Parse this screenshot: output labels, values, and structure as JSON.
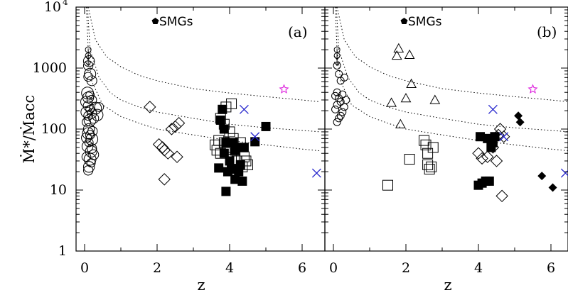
{
  "chart_data": {
    "type": "scatter",
    "xlabel": "z",
    "ylabel": "Ṁ*/Ṁacc",
    "xlim": [
      -0.3,
      6.5
    ],
    "ylim": [
      1,
      10000
    ],
    "y_scale": "log",
    "x_ticks": [
      0,
      2,
      4,
      6
    ],
    "y_ticks": [
      {
        "value": 1,
        "label": "1"
      },
      {
        "value": 10,
        "label": "10"
      },
      {
        "value": 100,
        "label": "100"
      },
      {
        "value": 1000,
        "label": "1000"
      },
      {
        "value": 10000,
        "label": "10",
        "sup": "4"
      }
    ],
    "legend": {
      "label": "SMGs",
      "marker": "filled-pentagon"
    },
    "colors": {
      "cross": "#2222cc",
      "star": "#dd22dd",
      "ink": "#000000"
    },
    "panels": [
      {
        "label": "(a)",
        "dotted_curves": [
          [
            [
              0.1,
              10000
            ],
            [
              0.3,
              2900
            ],
            [
              0.6,
              1550
            ],
            [
              1,
              1050
            ],
            [
              1.5,
              760
            ],
            [
              2,
              620
            ],
            [
              3,
              460
            ],
            [
              4,
              390
            ],
            [
              5,
              340
            ],
            [
              6,
              300
            ],
            [
              6.5,
              280
            ]
          ],
          [
            [
              0.08,
              10000
            ],
            [
              0.15,
              2000
            ],
            [
              0.4,
              700
            ],
            [
              0.7,
              400
            ],
            [
              1,
              300
            ],
            [
              1.5,
              230
            ],
            [
              2,
              190
            ],
            [
              3,
              150
            ],
            [
              4,
              120
            ],
            [
              5,
              105
            ],
            [
              6,
              95
            ],
            [
              6.5,
              90
            ]
          ],
          [
            [
              0.05,
              10000
            ],
            [
              0.1,
              2000
            ],
            [
              0.2,
              600
            ],
            [
              0.5,
              250
            ],
            [
              1,
              160
            ],
            [
              1.5,
              125
            ],
            [
              2,
              100
            ],
            [
              3,
              80
            ],
            [
              4,
              65
            ],
            [
              5,
              55
            ],
            [
              6,
              47
            ],
            [
              6.5,
              44
            ]
          ]
        ],
        "groups": [
          {
            "marker": "open-circle",
            "points": [
              [
                0.1,
                21
              ],
              [
                0.12,
                24
              ],
              [
                0.18,
                28
              ],
              [
                0.15,
                32
              ],
              [
                0.25,
                38
              ],
              [
                0.05,
                35
              ],
              [
                0.18,
                43
              ],
              [
                0.2,
                48
              ],
              [
                0.08,
                52
              ],
              [
                0.12,
                60
              ],
              [
                0.2,
                68
              ],
              [
                0.05,
                72
              ],
              [
                0.15,
                80
              ],
              [
                0.1,
                85
              ],
              [
                0.22,
                92
              ],
              [
                0.12,
                100
              ],
              [
                0.05,
                130
              ],
              [
                0.15,
                140
              ],
              [
                0.25,
                150
              ],
              [
                0.1,
                165
              ],
              [
                0.35,
                170
              ],
              [
                0.2,
                180
              ],
              [
                0.05,
                190
              ],
              [
                0.15,
                210
              ],
              [
                0.3,
                220
              ],
              [
                0.1,
                240
              ],
              [
                0.4,
                230
              ],
              [
                0.05,
                280
              ],
              [
                0.2,
                300
              ],
              [
                0.1,
                330
              ],
              [
                0.15,
                360
              ],
              [
                0.08,
                390
              ],
              [
                0.2,
                620
              ],
              [
                0.1,
                720
              ],
              [
                0.15,
                800
              ],
              [
                0.1,
                1100
              ],
              [
                0.12,
                1300
              ]
            ]
          },
          {
            "marker": "upper-limit-arrow",
            "points": [
              [
                0.1,
                1600
              ],
              [
                0.1,
                2000
              ]
            ]
          },
          {
            "marker": "open-diamond",
            "points": [
              [
                1.8,
                230
              ],
              [
                2.05,
                56
              ],
              [
                2.15,
                50
              ],
              [
                2.2,
                45
              ],
              [
                2.3,
                40
              ],
              [
                2.4,
                100
              ],
              [
                2.5,
                110
              ],
              [
                2.55,
                35
              ],
              [
                2.6,
                125
              ],
              [
                2.2,
                15
              ]
            ]
          },
          {
            "marker": "open-square",
            "points": [
              [
                3.6,
                55
              ],
              [
                3.65,
                45
              ],
              [
                3.7,
                65
              ],
              [
                3.75,
                40
              ],
              [
                3.85,
                60
              ],
              [
                3.9,
                230
              ],
              [
                3.95,
                50
              ],
              [
                4.0,
                90
              ],
              [
                4.05,
                32
              ],
              [
                4.1,
                70
              ],
              [
                4.15,
                45
              ],
              [
                4.2,
                30
              ],
              [
                4.3,
                60
              ],
              [
                4.35,
                24
              ],
              [
                4.4,
                35
              ],
              [
                4.45,
                30
              ],
              [
                4.5,
                26
              ],
              [
                4.05,
                260
              ],
              [
                3.85,
                120
              ],
              [
                3.75,
                150
              ]
            ]
          },
          {
            "marker": "filled-square",
            "points": [
              [
                3.7,
                23
              ],
              [
                3.75,
                140
              ],
              [
                3.8,
                210
              ],
              [
                3.85,
                100
              ],
              [
                3.9,
                60
              ],
              [
                3.85,
                40
              ],
              [
                3.9,
                9.5
              ],
              [
                3.95,
                20
              ],
              [
                4.0,
                30
              ],
              [
                4.05,
                22
              ],
              [
                4.1,
                60
              ],
              [
                4.15,
                45
              ],
              [
                4.2,
                50
              ],
              [
                4.25,
                20
              ],
              [
                4.3,
                26
              ],
              [
                4.35,
                14
              ],
              [
                4.4,
                50
              ],
              [
                4.7,
                62
              ],
              [
                5.0,
                110
              ],
              [
                4.15,
                15
              ]
            ]
          },
          {
            "marker": "cross",
            "points": [
              [
                4.4,
                210
              ],
              [
                4.7,
                75
              ],
              [
                6.4,
                19
              ]
            ]
          },
          {
            "marker": "star",
            "points": [
              [
                5.5,
                450
              ]
            ]
          }
        ]
      },
      {
        "label": "(b)",
        "dotted_curves": [
          [
            [
              0.1,
              10000
            ],
            [
              0.3,
              2900
            ],
            [
              0.6,
              1550
            ],
            [
              1,
              1050
            ],
            [
              1.5,
              760
            ],
            [
              2,
              620
            ],
            [
              3,
              460
            ],
            [
              4,
              390
            ],
            [
              5,
              340
            ],
            [
              6,
              300
            ],
            [
              6.5,
              280
            ]
          ],
          [
            [
              0.08,
              10000
            ],
            [
              0.15,
              2000
            ],
            [
              0.4,
              700
            ],
            [
              0.7,
              400
            ],
            [
              1,
              300
            ],
            [
              1.5,
              230
            ],
            [
              2,
              190
            ],
            [
              3,
              150
            ],
            [
              4,
              120
            ],
            [
              5,
              105
            ],
            [
              6,
              95
            ],
            [
              6.5,
              90
            ]
          ],
          [
            [
              0.05,
              10000
            ],
            [
              0.1,
              2000
            ],
            [
              0.2,
              600
            ],
            [
              0.5,
              250
            ],
            [
              1,
              160
            ],
            [
              1.5,
              125
            ],
            [
              2,
              100
            ],
            [
              3,
              80
            ],
            [
              4,
              65
            ],
            [
              5,
              55
            ],
            [
              6,
              47
            ],
            [
              6.5,
              44
            ]
          ]
        ],
        "groups": [
          {
            "marker": "open-circle-small",
            "points": [
              [
                0.1,
                130
              ],
              [
                0.15,
                150
              ],
              [
                0.2,
                165
              ],
              [
                0.25,
                190
              ],
              [
                0.05,
                210
              ],
              [
                0.3,
                230
              ],
              [
                0.1,
                250
              ],
              [
                0.2,
                280
              ],
              [
                0.35,
                300
              ],
              [
                0.15,
                320
              ],
              [
                0.05,
                350
              ],
              [
                0.25,
                370
              ],
              [
                0.1,
                400
              ],
              [
                0.2,
                620
              ],
              [
                0.3,
                700
              ],
              [
                0.15,
                800
              ],
              [
                0.1,
                1100
              ]
            ]
          },
          {
            "marker": "upper-limit-arrow",
            "points": [
              [
                0.1,
                1600
              ],
              [
                0.1,
                2000
              ]
            ]
          },
          {
            "marker": "open-triangle",
            "points": [
              [
                1.6,
                270
              ],
              [
                1.75,
                1600
              ],
              [
                1.8,
                2100
              ],
              [
                1.85,
                120
              ],
              [
                2.0,
                320
              ],
              [
                2.1,
                1650
              ],
              [
                2.15,
                550
              ],
              [
                2.8,
                300
              ]
            ]
          },
          {
            "marker": "open-square",
            "points": [
              [
                1.5,
                12
              ],
              [
                2.1,
                32
              ],
              [
                2.5,
                65
              ],
              [
                2.55,
                55
              ],
              [
                2.6,
                26
              ],
              [
                2.65,
                22
              ],
              [
                2.7,
                24
              ],
              [
                2.75,
                50
              ],
              [
                2.6,
                40
              ]
            ]
          },
          {
            "marker": "open-diamond",
            "points": [
              [
                4.0,
                40
              ],
              [
                4.1,
                33
              ],
              [
                4.25,
                35
              ],
              [
                4.5,
                30
              ],
              [
                4.55,
                80
              ],
              [
                4.6,
                100
              ],
              [
                4.65,
                8
              ],
              [
                4.7,
                75
              ],
              [
                4.4,
                50
              ]
            ]
          },
          {
            "marker": "filled-square",
            "points": [
              [
                4.0,
                12
              ],
              [
                4.05,
                75
              ],
              [
                4.1,
                13
              ],
              [
                4.2,
                14
              ],
              [
                4.3,
                14
              ],
              [
                4.35,
                50
              ],
              [
                4.4,
                60
              ],
              [
                4.45,
                75
              ],
              [
                4.25,
                70
              ]
            ]
          },
          {
            "marker": "filled-diamond",
            "points": [
              [
                5.1,
                165
              ],
              [
                5.15,
                130
              ],
              [
                5.75,
                17
              ],
              [
                6.05,
                11
              ]
            ]
          },
          {
            "marker": "cross",
            "points": [
              [
                4.4,
                210
              ],
              [
                4.7,
                75
              ],
              [
                6.4,
                19
              ]
            ]
          },
          {
            "marker": "star",
            "points": [
              [
                5.5,
                450
              ]
            ]
          }
        ]
      }
    ]
  }
}
